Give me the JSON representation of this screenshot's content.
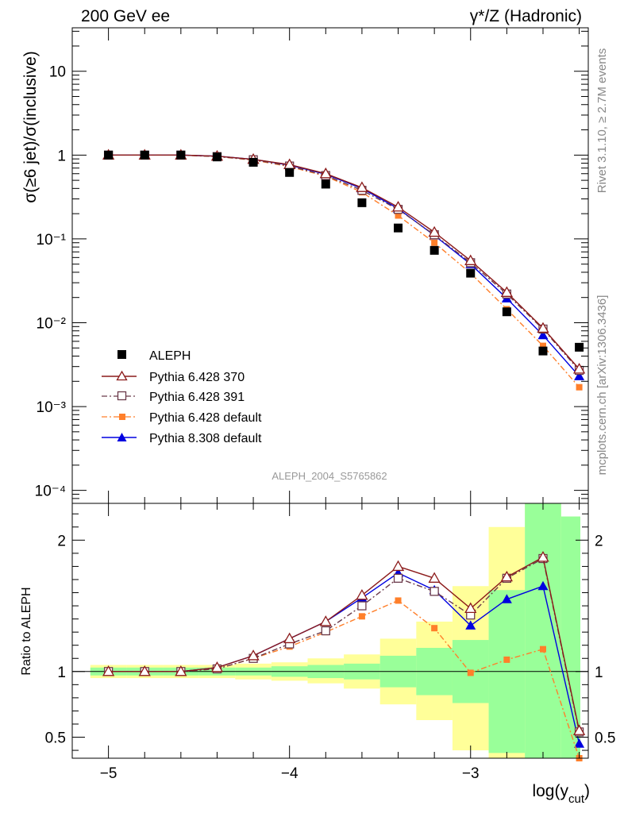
{
  "header": {
    "left_title": "200 GeV ee",
    "right_title": "γ*/Z (Hadronic)"
  },
  "side_labels": {
    "rivet": "Rivet 3.1.10, ≥ 2.7M events",
    "mcplots": "mcplots.cern.ch [arXiv:1306.3436]"
  },
  "analysis_tag": "ALEPH_2004_S5765862",
  "colors": {
    "aleph": "#000000",
    "py6_370": "#8b1a1a",
    "py6_391": "#6b3a4a",
    "py6_default": "#ff7f2a",
    "py8_default": "#0000e0",
    "band_yellow": "#ffff99",
    "band_green": "#99ff99"
  },
  "chart_data": [
    {
      "type": "line",
      "panel": "main",
      "ylabel": "σ(≥6 jet)/σ(inclusive)",
      "xlabel": "",
      "y_scale": "log",
      "xlim": [
        -5.2,
        -2.35
      ],
      "ylim": [
        7e-05,
        33
      ],
      "y_ticks": [
        {
          "value": 10,
          "label": "10"
        },
        {
          "value": 1,
          "label": "1"
        },
        {
          "value": 0.1,
          "label": "10⁻¹"
        },
        {
          "value": 0.01,
          "label": "10⁻²"
        },
        {
          "value": 0.001,
          "label": "10⁻³"
        },
        {
          "value": 0.0001,
          "label": "10⁻⁴"
        }
      ],
      "x": [
        -5.0,
        -4.8,
        -4.6,
        -4.4,
        -4.2,
        -4.0,
        -3.8,
        -3.6,
        -3.4,
        -3.2,
        -3.0,
        -2.8,
        -2.6,
        -2.4
      ],
      "series": [
        {
          "name": "ALEPH",
          "marker": "square-filled",
          "color_key": "aleph",
          "line": "none",
          "values": [
            1.0,
            1.0,
            1.0,
            0.95,
            0.82,
            0.62,
            0.45,
            0.27,
            0.135,
            0.073,
            0.039,
            0.0135,
            0.0046,
            0.0051
          ]
        },
        {
          "name": "Pythia 6.428 370",
          "marker": "triangle-open",
          "color_key": "py6_370",
          "line": "solid",
          "values": [
            1.0,
            1.0,
            1.0,
            0.97,
            0.89,
            0.77,
            0.6,
            0.41,
            0.24,
            0.12,
            0.055,
            0.023,
            0.0086,
            0.0028
          ]
        },
        {
          "name": "Pythia 6.428 391",
          "marker": "square-open",
          "color_key": "py6_391",
          "line": "dashdot",
          "values": [
            1.0,
            1.0,
            1.0,
            0.96,
            0.88,
            0.74,
            0.57,
            0.38,
            0.225,
            0.112,
            0.052,
            0.022,
            0.0084,
            0.0027
          ]
        },
        {
          "name": "Pythia 6.428 default",
          "marker": "square-filled",
          "color_key": "py6_default",
          "line": "dashdot",
          "values": [
            1.0,
            1.0,
            1.0,
            0.96,
            0.87,
            0.73,
            0.56,
            0.36,
            0.19,
            0.09,
            0.039,
            0.0145,
            0.0053,
            0.0017
          ]
        },
        {
          "name": "Pythia 8.308 default",
          "marker": "triangle-filled",
          "color_key": "py8_default",
          "line": "solid",
          "values": [
            1.0,
            1.0,
            1.0,
            0.97,
            0.89,
            0.76,
            0.59,
            0.4,
            0.23,
            0.11,
            0.05,
            0.0195,
            0.0071,
            0.0023
          ]
        }
      ]
    },
    {
      "type": "line",
      "panel": "ratio",
      "ylabel": "Ratio to ALEPH",
      "xlabel": "log(y_cut)",
      "xlabel_main": "log(y",
      "xlabel_sub": "cut",
      "xlabel_close": ")",
      "y_scale": "linear",
      "xlim": [
        -5.2,
        -2.35
      ],
      "ylim": [
        0.34,
        2.28
      ],
      "x_ticks": [
        {
          "value": -5,
          "label": "−5"
        },
        {
          "value": -4,
          "label": "−4"
        },
        {
          "value": -3,
          "label": "−3"
        }
      ],
      "y_ticks": [
        {
          "value": 2,
          "label": "2"
        },
        {
          "value": 1,
          "label": "1"
        },
        {
          "value": 0.5,
          "label": "0.5"
        }
      ],
      "bins": [
        {
          "lo": -5.1,
          "hi": -4.9,
          "yellow": [
            0.95,
            1.05
          ],
          "green": [
            0.97,
            1.03
          ]
        },
        {
          "lo": -4.9,
          "hi": -4.7,
          "yellow": [
            0.95,
            1.05
          ],
          "green": [
            0.97,
            1.03
          ]
        },
        {
          "lo": -4.7,
          "hi": -4.5,
          "yellow": [
            0.95,
            1.05
          ],
          "green": [
            0.97,
            1.03
          ]
        },
        {
          "lo": -4.5,
          "hi": -4.3,
          "yellow": [
            0.95,
            1.05
          ],
          "green": [
            0.97,
            1.03
          ]
        },
        {
          "lo": -4.3,
          "hi": -4.1,
          "yellow": [
            0.94,
            1.06
          ],
          "green": [
            0.97,
            1.03
          ]
        },
        {
          "lo": -4.1,
          "hi": -3.9,
          "yellow": [
            0.93,
            1.07
          ],
          "green": [
            0.96,
            1.04
          ]
        },
        {
          "lo": -3.9,
          "hi": -3.7,
          "yellow": [
            0.91,
            1.1
          ],
          "green": [
            0.95,
            1.05
          ]
        },
        {
          "lo": -3.7,
          "hi": -3.5,
          "yellow": [
            0.87,
            1.13
          ],
          "green": [
            0.94,
            1.06
          ]
        },
        {
          "lo": -3.5,
          "hi": -3.3,
          "yellow": [
            0.75,
            1.25
          ],
          "green": [
            0.88,
            1.12
          ]
        },
        {
          "lo": -3.3,
          "hi": -3.1,
          "yellow": [
            0.63,
            1.38
          ],
          "green": [
            0.82,
            1.18
          ]
        },
        {
          "lo": -3.1,
          "hi": -2.9,
          "yellow": [
            0.4,
            1.65
          ],
          "green": [
            0.76,
            1.24
          ]
        },
        {
          "lo": -2.9,
          "hi": -2.7,
          "yellow": [
            0.3,
            2.1
          ],
          "green": [
            0.38,
            1.62
          ]
        },
        {
          "lo": -2.7,
          "hi": -2.5,
          "yellow": [
            0.3,
            2.5
          ],
          "green": [
            0.3,
            2.5
          ]
        },
        {
          "lo": -2.5,
          "hi": -2.3,
          "yellow": [
            0.3,
            2.18
          ],
          "green": [
            0.3,
            2.18
          ]
        }
      ],
      "x": [
        -5.0,
        -4.8,
        -4.6,
        -4.4,
        -4.2,
        -4.0,
        -3.8,
        -3.6,
        -3.4,
        -3.2,
        -3.0,
        -2.8,
        -2.6,
        -2.4
      ],
      "series": [
        {
          "name": "Pythia 6.428 370",
          "marker": "triangle-open",
          "color_key": "py6_370",
          "line": "solid",
          "values": [
            1.0,
            1.0,
            1.0,
            1.03,
            1.12,
            1.25,
            1.38,
            1.58,
            1.8,
            1.71,
            1.48,
            1.72,
            1.87,
            0.55
          ]
        },
        {
          "name": "Pythia 6.428 391",
          "marker": "square-open",
          "color_key": "py6_391",
          "line": "dashdot",
          "values": [
            1.0,
            1.0,
            1.0,
            1.02,
            1.1,
            1.21,
            1.31,
            1.5,
            1.71,
            1.61,
            1.43,
            1.71,
            1.86,
            0.54
          ]
        },
        {
          "name": "Pythia 6.428 default",
          "marker": "square-filled",
          "color_key": "py6_default",
          "line": "dashdot",
          "values": [
            1.0,
            1.0,
            1.0,
            1.02,
            1.1,
            1.19,
            1.3,
            1.42,
            1.54,
            1.33,
            0.99,
            1.09,
            1.17,
            0.34
          ]
        },
        {
          "name": "Pythia 8.308 default",
          "marker": "triangle-filled",
          "color_key": "py8_default",
          "line": "solid",
          "values": [
            1.0,
            1.0,
            1.0,
            1.03,
            1.12,
            1.25,
            1.38,
            1.56,
            1.75,
            1.62,
            1.35,
            1.55,
            1.65,
            0.45
          ]
        }
      ]
    }
  ]
}
